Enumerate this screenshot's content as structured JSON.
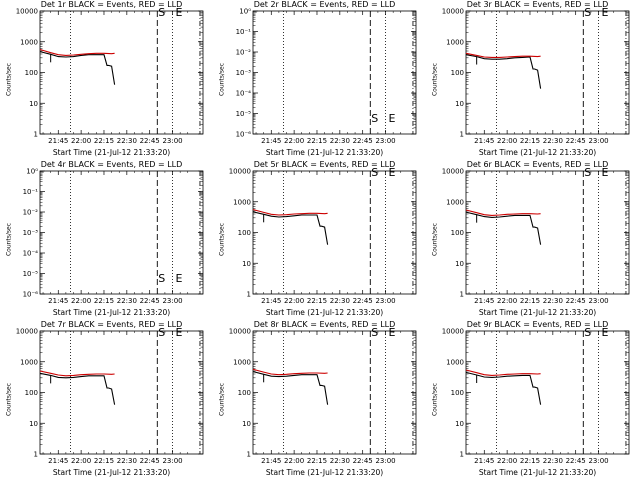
{
  "chart_data": [
    {
      "type": "line",
      "title": "Det 1r BLACK = Events, RED = LLD",
      "xlabel": "Start Time (21-Jul-12 21:33:20)",
      "ylabel": "Counts/sec",
      "yscale": "log",
      "ylim": [
        1,
        10000
      ],
      "y_tick_labels": [
        "1",
        "10",
        "100",
        "1000",
        "10000"
      ],
      "x_tick_labels": [
        "21:45",
        "22:00",
        "22:15",
        "22:30",
        "22:45",
        "23:00"
      ],
      "marker_labels": [
        "S",
        "E"
      ],
      "has_data": true,
      "series": [
        {
          "color": "#000000",
          "x": [
            "21:33",
            "21:40",
            "21:45",
            "21:50",
            "21:55",
            "22:00",
            "22:05",
            "22:10",
            "22:15",
            "22:17",
            "22:18",
            "22:20",
            "22:22"
          ],
          "values": [
            480,
            390,
            330,
            320,
            330,
            360,
            380,
            380,
            380,
            170,
            170,
            160,
            40
          ]
        },
        {
          "color": "#cc0000",
          "x": [
            "21:33",
            "21:40",
            "21:45",
            "21:50",
            "21:55",
            "22:00",
            "22:05",
            "22:10",
            "22:15",
            "22:20",
            "22:22"
          ],
          "values": [
            560,
            440,
            380,
            360,
            370,
            390,
            410,
            420,
            420,
            410,
            420
          ]
        }
      ]
    },
    {
      "type": "line",
      "title": "Det 2r BLACK = Events, RED = LLD",
      "xlabel": "Start Time (21-Jul-12 21:33:20)",
      "ylabel": "Counts/sec",
      "yscale": "log",
      "ylim": [
        1,
        1e-06
      ],
      "y_tick_labels": [
        "10⁻⁶",
        "10⁻⁵",
        "10⁻⁴",
        "10⁻³",
        "10⁻²",
        "10⁻¹",
        "10⁰"
      ],
      "x_tick_labels": [
        "21:45",
        "22:00",
        "22:15",
        "22:30",
        "22:45",
        "23:00"
      ],
      "marker_labels": [
        "S",
        "E"
      ],
      "has_data": false,
      "series": []
    },
    {
      "type": "line",
      "title": "Det 3r BLACK = Events, RED = LLD",
      "xlabel": "Start Time (21-Jul-12 21:33:20)",
      "ylabel": "Counts/sec",
      "yscale": "log",
      "ylim": [
        1,
        10000
      ],
      "y_tick_labels": [
        "1",
        "10",
        "100",
        "1000",
        "10000"
      ],
      "x_tick_labels": [
        "21:45",
        "22:00",
        "22:15",
        "22:30",
        "22:45",
        "23:00"
      ],
      "marker_labels": [
        "S",
        "E"
      ],
      "has_data": true,
      "series": [
        {
          "color": "#000000",
          "x": [
            "21:33",
            "21:40",
            "21:45",
            "21:50",
            "21:55",
            "22:00",
            "22:05",
            "22:10",
            "22:15",
            "22:17",
            "22:18",
            "22:20",
            "22:22"
          ],
          "values": [
            380,
            330,
            280,
            270,
            270,
            280,
            300,
            310,
            320,
            130,
            130,
            120,
            30
          ]
        },
        {
          "color": "#cc0000",
          "x": [
            "21:33",
            "21:40",
            "21:45",
            "21:50",
            "21:55",
            "22:00",
            "22:05",
            "22:10",
            "22:15",
            "22:20",
            "22:22"
          ],
          "values": [
            420,
            360,
            320,
            310,
            310,
            320,
            330,
            340,
            340,
            330,
            340
          ]
        }
      ]
    },
    {
      "type": "line",
      "title": "Det 4r BLACK = Events, RED = LLD",
      "xlabel": "Start Time (21-Jul-12 21:33:20)",
      "ylabel": "Counts/sec",
      "yscale": "log",
      "ylim": [
        1,
        1e-06
      ],
      "y_tick_labels": [
        "10⁻⁶",
        "10⁻⁵",
        "10⁻⁴",
        "10⁻³",
        "10⁻²",
        "10⁻¹",
        "10⁰"
      ],
      "x_tick_labels": [
        "21:45",
        "22:00",
        "22:15",
        "22:30",
        "22:45",
        "23:00"
      ],
      "marker_labels": [
        "S",
        "E"
      ],
      "has_data": false,
      "series": []
    },
    {
      "type": "line",
      "title": "Det 5r BLACK = Events, RED = LLD",
      "xlabel": "Start Time (21-Jul-12 21:33:20)",
      "ylabel": "Counts/sec",
      "yscale": "log",
      "ylim": [
        1,
        10000
      ],
      "y_tick_labels": [
        "1",
        "10",
        "100",
        "1000",
        "10000"
      ],
      "x_tick_labels": [
        "21:45",
        "22:00",
        "22:15",
        "22:30",
        "22:45",
        "23:00"
      ],
      "marker_labels": [
        "S",
        "E"
      ],
      "has_data": true,
      "series": [
        {
          "color": "#000000",
          "x": [
            "21:33",
            "21:40",
            "21:45",
            "21:50",
            "21:55",
            "22:00",
            "22:05",
            "22:10",
            "22:15",
            "22:17",
            "22:18",
            "22:20",
            "22:22"
          ],
          "values": [
            470,
            390,
            340,
            320,
            330,
            350,
            370,
            370,
            370,
            160,
            160,
            150,
            40
          ]
        },
        {
          "color": "#cc0000",
          "x": [
            "21:33",
            "21:40",
            "21:45",
            "21:50",
            "21:55",
            "22:00",
            "22:05",
            "22:10",
            "22:15",
            "22:20",
            "22:22"
          ],
          "values": [
            560,
            450,
            390,
            370,
            380,
            400,
            410,
            420,
            420,
            410,
            420
          ]
        }
      ]
    },
    {
      "type": "line",
      "title": "Det 6r BLACK = Events, RED = LLD",
      "xlabel": "Start Time (21-Jul-12 21:33:20)",
      "ylabel": "Counts/sec",
      "yscale": "log",
      "ylim": [
        1,
        10000
      ],
      "y_tick_labels": [
        "1",
        "10",
        "100",
        "1000",
        "10000"
      ],
      "x_tick_labels": [
        "21:45",
        "22:00",
        "22:15",
        "22:30",
        "22:45",
        "23:00"
      ],
      "marker_labels": [
        "S",
        "E"
      ],
      "has_data": true,
      "series": [
        {
          "color": "#000000",
          "x": [
            "21:33",
            "21:40",
            "21:45",
            "21:50",
            "21:55",
            "22:00",
            "22:05",
            "22:10",
            "22:15",
            "22:17",
            "22:18",
            "22:20",
            "22:22"
          ],
          "values": [
            460,
            380,
            330,
            310,
            320,
            340,
            360,
            360,
            360,
            150,
            150,
            140,
            40
          ]
        },
        {
          "color": "#cc0000",
          "x": [
            "21:33",
            "21:40",
            "21:45",
            "21:50",
            "21:55",
            "22:00",
            "22:05",
            "22:10",
            "22:15",
            "22:20",
            "22:22"
          ],
          "values": [
            540,
            440,
            380,
            360,
            370,
            390,
            400,
            410,
            410,
            400,
            410
          ]
        }
      ]
    },
    {
      "type": "line",
      "title": "Det 7r BLACK = Events, RED = LLD",
      "xlabel": "Start Time (21-Jul-12 21:33:20)",
      "ylabel": "Counts/sec",
      "yscale": "log",
      "ylim": [
        1,
        10000
      ],
      "y_tick_labels": [
        "1",
        "10",
        "100",
        "1000",
        "10000"
      ],
      "x_tick_labels": [
        "21:45",
        "22:00",
        "22:15",
        "22:30",
        "22:45",
        "23:00"
      ],
      "marker_labels": [
        "S",
        "E"
      ],
      "has_data": true,
      "series": [
        {
          "color": "#000000",
          "x": [
            "21:33",
            "21:40",
            "21:45",
            "21:50",
            "21:55",
            "22:00",
            "22:05",
            "22:10",
            "22:15",
            "22:17",
            "22:18",
            "22:20",
            "22:22"
          ],
          "values": [
            420,
            360,
            310,
            300,
            310,
            330,
            350,
            350,
            350,
            140,
            140,
            130,
            40
          ]
        },
        {
          "color": "#cc0000",
          "x": [
            "21:33",
            "21:40",
            "21:45",
            "21:50",
            "21:55",
            "22:00",
            "22:05",
            "22:10",
            "22:15",
            "22:20",
            "22:22"
          ],
          "values": [
            500,
            420,
            370,
            350,
            360,
            380,
            390,
            400,
            400,
            390,
            400
          ]
        }
      ]
    },
    {
      "type": "line",
      "title": "Det 8r BLACK = Events, RED = LLD",
      "xlabel": "Start Time (21-Jul-12 21:33:20)",
      "ylabel": "Counts/sec",
      "yscale": "log",
      "ylim": [
        1,
        10000
      ],
      "y_tick_labels": [
        "1",
        "10",
        "100",
        "1000",
        "10000"
      ],
      "x_tick_labels": [
        "21:45",
        "22:00",
        "22:15",
        "22:30",
        "22:45",
        "23:00"
      ],
      "marker_labels": [
        "S",
        "E"
      ],
      "has_data": true,
      "series": [
        {
          "color": "#000000",
          "x": [
            "21:33",
            "21:40",
            "21:45",
            "21:50",
            "21:55",
            "22:00",
            "22:05",
            "22:10",
            "22:15",
            "22:17",
            "22:18",
            "22:20",
            "22:22"
          ],
          "values": [
            480,
            390,
            340,
            330,
            340,
            360,
            380,
            380,
            380,
            170,
            170,
            160,
            40
          ]
        },
        {
          "color": "#cc0000",
          "x": [
            "21:33",
            "21:40",
            "21:45",
            "21:50",
            "21:55",
            "22:00",
            "22:05",
            "22:10",
            "22:15",
            "22:20",
            "22:22"
          ],
          "values": [
            570,
            460,
            400,
            380,
            390,
            410,
            420,
            430,
            430,
            420,
            430
          ]
        }
      ]
    },
    {
      "type": "line",
      "title": "Det 9r BLACK = Events, RED = LLD",
      "xlabel": "Start Time (21-Jul-12 21:33:20)",
      "ylabel": "Counts/sec",
      "yscale": "log",
      "ylim": [
        1,
        10000
      ],
      "y_tick_labels": [
        "1",
        "10",
        "100",
        "1000",
        "10000"
      ],
      "x_tick_labels": [
        "21:45",
        "22:00",
        "22:15",
        "22:30",
        "22:45",
        "23:00"
      ],
      "marker_labels": [
        "S",
        "E"
      ],
      "has_data": true,
      "series": [
        {
          "color": "#000000",
          "x": [
            "21:33",
            "21:40",
            "21:45",
            "21:50",
            "21:55",
            "22:00",
            "22:05",
            "22:10",
            "22:15",
            "22:17",
            "22:18",
            "22:20",
            "22:22"
          ],
          "values": [
            450,
            370,
            320,
            310,
            320,
            340,
            350,
            360,
            360,
            150,
            150,
            140,
            40
          ]
        },
        {
          "color": "#cc0000",
          "x": [
            "21:33",
            "21:40",
            "21:45",
            "21:50",
            "21:55",
            "22:00",
            "22:05",
            "22:10",
            "22:15",
            "22:20",
            "22:22"
          ],
          "values": [
            540,
            440,
            380,
            360,
            370,
            390,
            400,
            410,
            410,
            400,
            410
          ]
        }
      ]
    }
  ]
}
